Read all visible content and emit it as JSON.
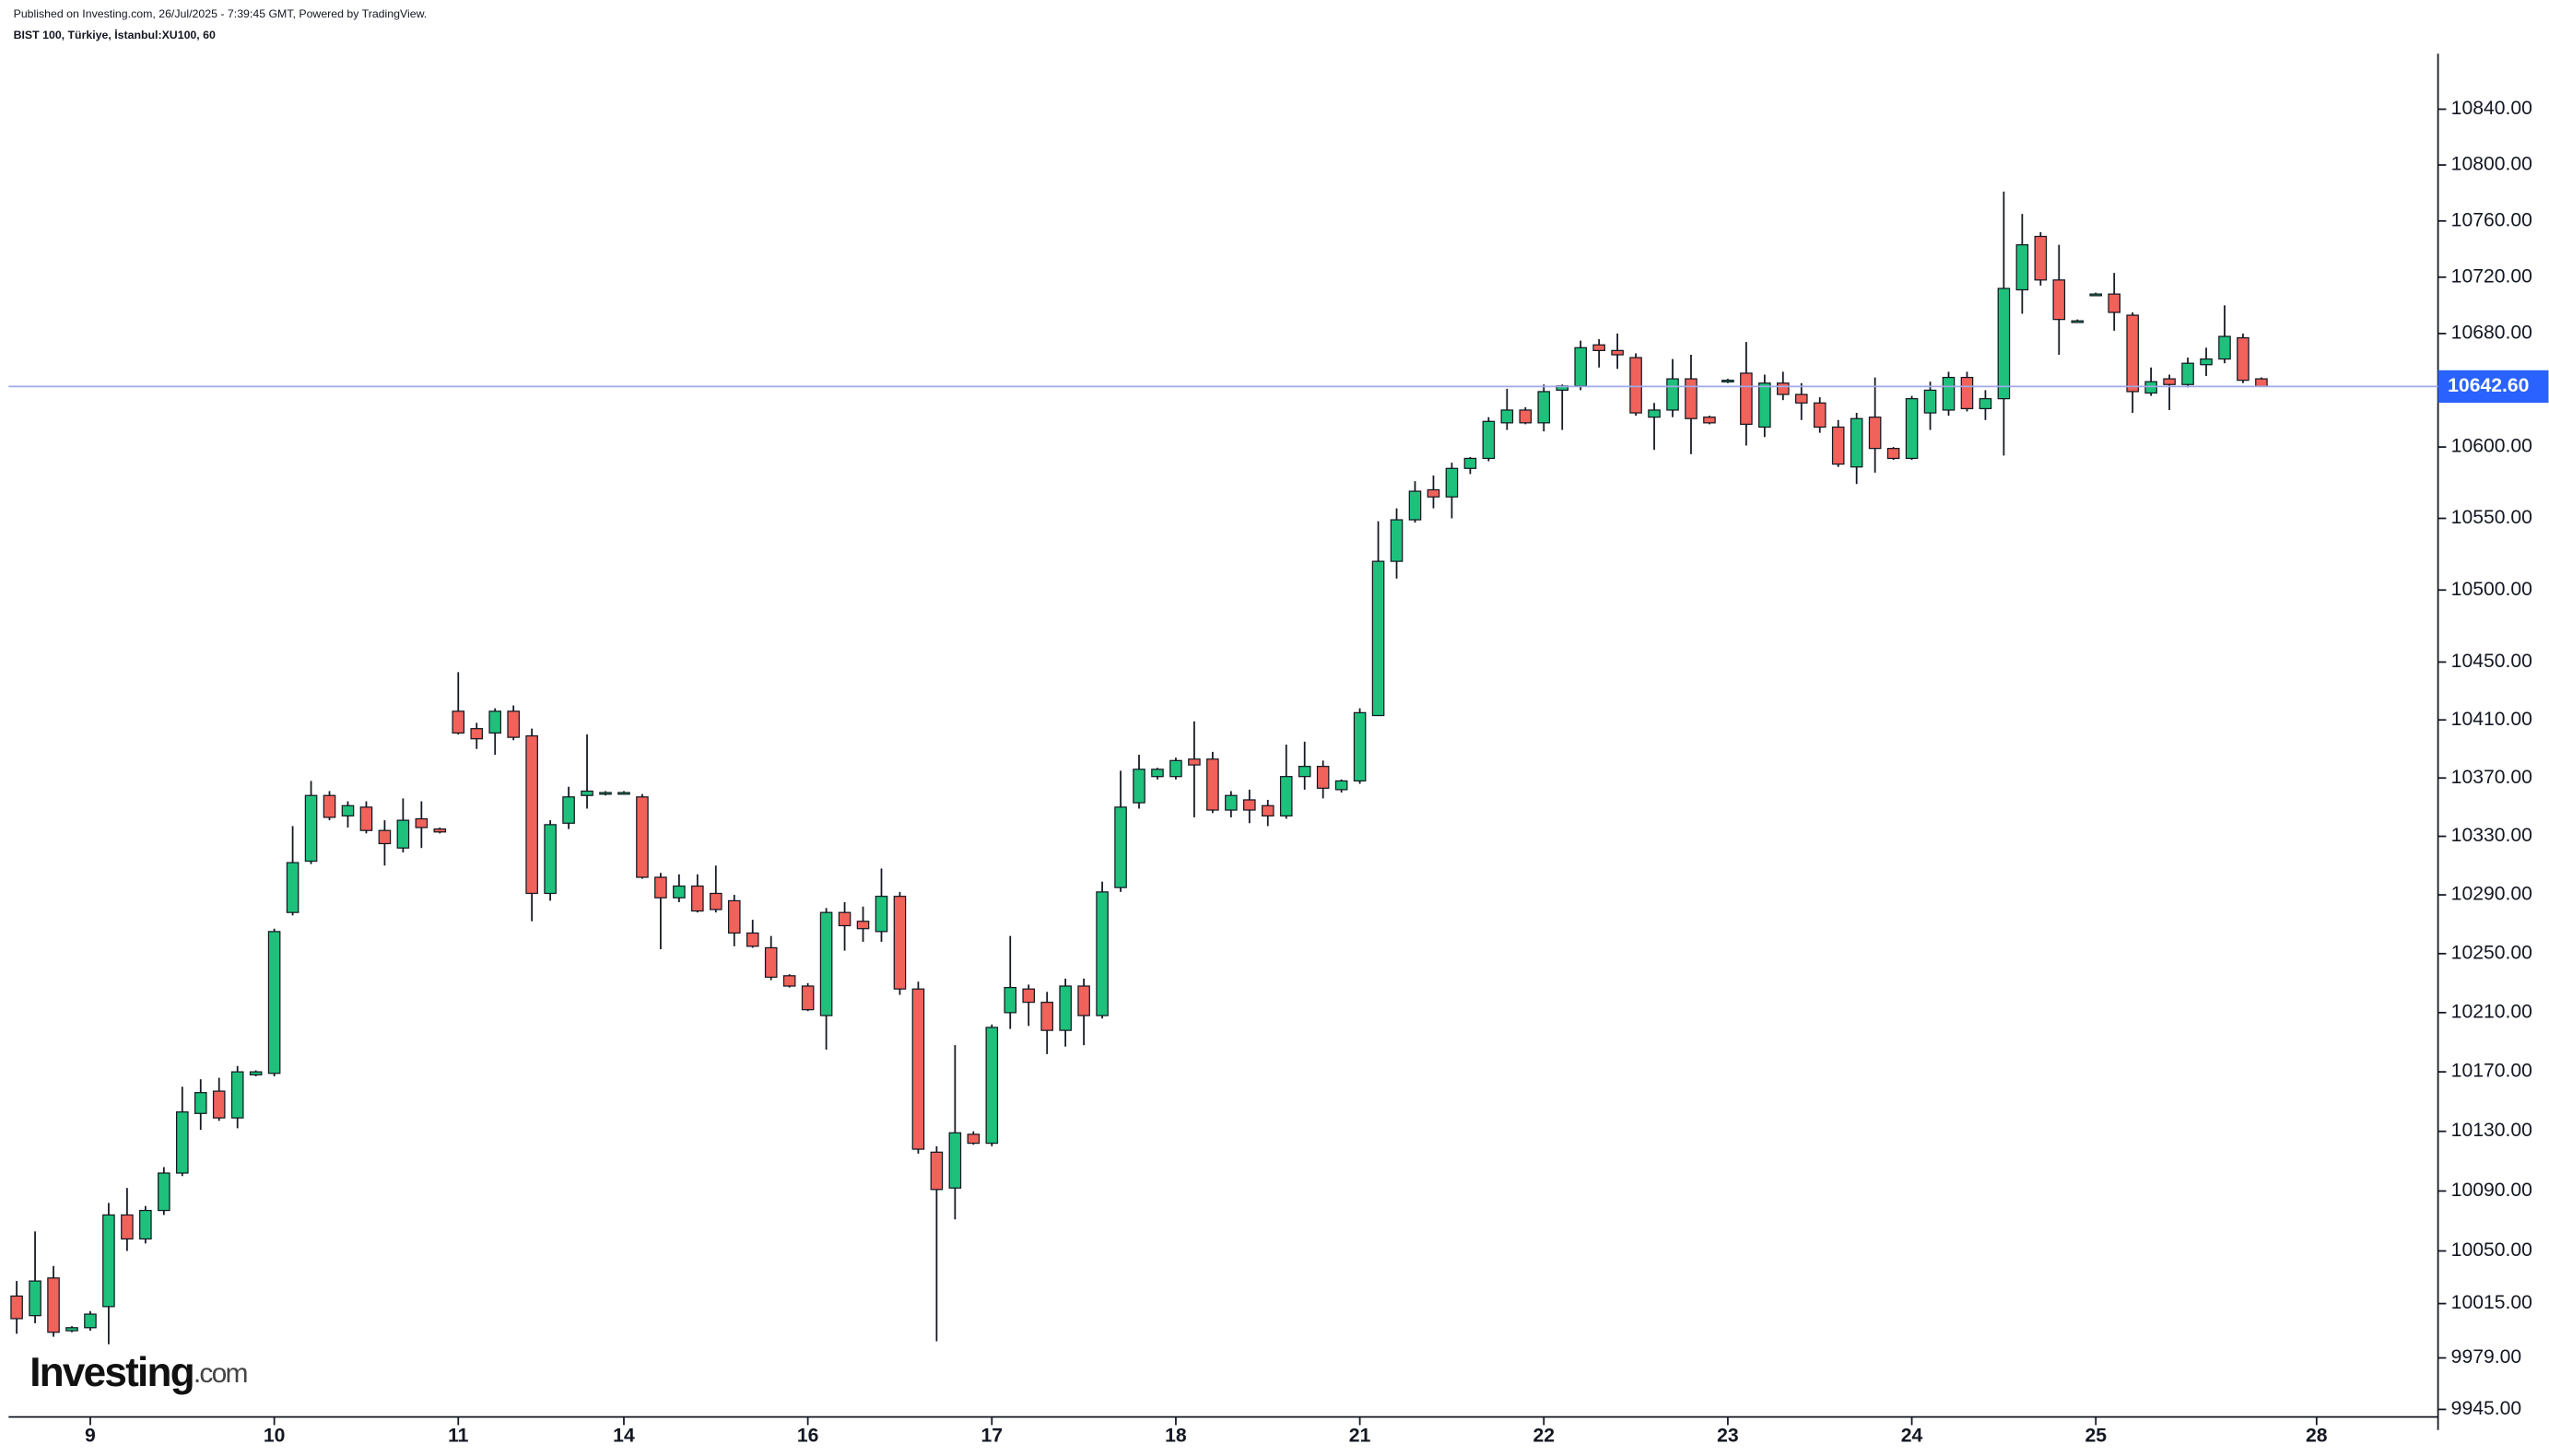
{
  "header": {
    "published": "Published on Investing.com, 26/Jul/2025 - 7:39:45 GMT, Powered by TradingView.",
    "symbol": "BIST 100, Türkiye, İstanbul:XU100, 60"
  },
  "logo": {
    "brand": "Investing",
    "suffix": ".com"
  },
  "chart_data": {
    "type": "candlestick",
    "up_color": "#1ec17b",
    "down_color": "#f0625a",
    "log_scale": true,
    "ylim": [
      9940,
      10880
    ],
    "yticks": [
      {
        "value": 10840,
        "label": "10840.00"
      },
      {
        "value": 10800,
        "label": "10800.00"
      },
      {
        "value": 10760,
        "label": "10760.00"
      },
      {
        "value": 10720,
        "label": "10720.00"
      },
      {
        "value": 10680,
        "label": "10680.00"
      },
      {
        "value": 10600,
        "label": "10600.00"
      },
      {
        "value": 10550,
        "label": "10550.00"
      },
      {
        "value": 10500,
        "label": "10500.00"
      },
      {
        "value": 10450,
        "label": "10450.00"
      },
      {
        "value": 10410,
        "label": "10410.00"
      },
      {
        "value": 10370,
        "label": "10370.00"
      },
      {
        "value": 10330,
        "label": "10330.00"
      },
      {
        "value": 10290,
        "label": "10290.00"
      },
      {
        "value": 10250,
        "label": "10250.00"
      },
      {
        "value": 10210,
        "label": "10210.00"
      },
      {
        "value": 10170,
        "label": "10170.00"
      },
      {
        "value": 10130,
        "label": "10130.00"
      },
      {
        "value": 10090,
        "label": "10090.00"
      },
      {
        "value": 10050,
        "label": "10050.00"
      },
      {
        "value": 10015,
        "label": "10015.00"
      },
      {
        "value": 9979,
        "label": "9979.00"
      },
      {
        "value": 9945,
        "label": "9945.00"
      }
    ],
    "xlim": [
      -0.44,
      131.6
    ],
    "xticks": [
      {
        "value": 4,
        "label": "9"
      },
      {
        "value": 14,
        "label": "10"
      },
      {
        "value": 24,
        "label": "11"
      },
      {
        "value": 33,
        "label": "14"
      },
      {
        "value": 43,
        "label": "16"
      },
      {
        "value": 53,
        "label": "17"
      },
      {
        "value": 63,
        "label": "18"
      },
      {
        "value": 73,
        "label": "21"
      },
      {
        "value": 83,
        "label": "22"
      },
      {
        "value": 93,
        "label": "23"
      },
      {
        "value": 103,
        "label": "24"
      },
      {
        "value": 113,
        "label": "25"
      },
      {
        "value": 125,
        "label": "28"
      }
    ],
    "last_price": {
      "value": 10642.6,
      "label": "10642.60",
      "color": "#2962ff"
    },
    "open": [
      10020,
      10007,
      10032,
      9997,
      9999,
      10013,
      10074,
      10058,
      10077,
      10102,
      10142,
      10157,
      10139,
      10168,
      10169,
      10278,
      10313,
      10358,
      10344,
      10350,
      10334,
      10322,
      10342,
      10335,
      10416,
      10404,
      10401,
      10416,
      10399,
      10291,
      10339,
      10358,
      10359,
      10360,
      10357,
      10302,
      10288,
      10296,
      10291,
      10286,
      10264,
      10254,
      10235,
      10228,
      10208,
      10278,
      10272,
      10265,
      10289,
      10226,
      10116,
      10092,
      10128,
      10122,
      10210,
      10226,
      10217,
      10198,
      10228,
      10208,
      10295,
      10353,
      10371,
      10371,
      10383,
      10383,
      10348,
      10355,
      10351,
      10344,
      10371,
      10378,
      10362,
      10368,
      10413,
      10520,
      10549,
      10570,
      10565,
      10585,
      10592,
      10617,
      10626,
      10617,
      10640,
      10643,
      10672,
      10668,
      10663,
      10621,
      10626,
      10648,
      10621,
      10646,
      10652,
      10614,
      10645,
      10637,
      10631,
      10614,
      10586,
      10621,
      10599,
      10592,
      10624,
      10626,
      10649,
      10627,
      10634,
      10711,
      10749,
      10718,
      10689,
      10708,
      10708,
      10693,
      10638,
      10648,
      10644,
      10658,
      10662,
      10677,
      10648
    ],
    "high": [
      10030,
      10063,
      10040,
      10000,
      10010,
      10082,
      10092,
      10080,
      10106,
      10160,
      10165,
      10166,
      10174,
      10171,
      10267,
      10337,
      10368,
      10361,
      10354,
      10354,
      10341,
      10356,
      10354,
      10336,
      10443,
      10408,
      10418,
      10420,
      10404,
      10341,
      10364,
      10400,
      10361,
      10361,
      10359,
      10305,
      10304,
      10304,
      10310,
      10290,
      10273,
      10262,
      10236,
      10230,
      10281,
      10285,
      10282,
      10308,
      10292,
      10231,
      10120,
      10188,
      10130,
      10202,
      10262,
      10229,
      10224,
      10233,
      10233,
      10299,
      10375,
      10386,
      10377,
      10384,
      10409,
      10388,
      10361,
      10362,
      10355,
      10393,
      10395,
      10382,
      10369,
      10418,
      10548,
      10557,
      10576,
      10580,
      10589,
      10593,
      10621,
      10641,
      10628,
      10644,
      10644,
      10675,
      10676,
      10680,
      10666,
      10631,
      10662,
      10665,
      10622,
      10648,
      10674,
      10651,
      10653,
      10645,
      10635,
      10619,
      10624,
      10649,
      10600,
      10636,
      10646,
      10653,
      10653,
      10640,
      10781,
      10765,
      10752,
      10743,
      10690,
      10709,
      10723,
      10695,
      10656,
      10651,
      10663,
      10670,
      10700,
      10680,
      10649
    ],
    "low": [
      9995,
      10002,
      9993,
      9996,
      9997,
      9988,
      10050,
      10055,
      10074,
      10100,
      10131,
      10137,
      10132,
      10167,
      10167,
      10276,
      10311,
      10341,
      10336,
      10332,
      10310,
      10319,
      10322,
      10332,
      10400,
      10390,
      10386,
      10396,
      10272,
      10286,
      10335,
      10349,
      10358,
      10359,
      10301,
      10253,
      10285,
      10278,
      10278,
      10255,
      10254,
      10232,
      10227,
      10211,
      10185,
      10252,
      10258,
      10258,
      10222,
      10115,
      9990,
      10071,
      10121,
      10120,
      10199,
      10201,
      10182,
      10187,
      10188,
      10206,
      10292,
      10349,
      10369,
      10369,
      10343,
      10346,
      10343,
      10339,
      10337,
      10342,
      10362,
      10356,
      10360,
      10366,
      10413,
      10508,
      10547,
      10557,
      10550,
      10581,
      10590,
      10612,
      10616,
      10611,
      10612,
      10640,
      10656,
      10655,
      10622,
      10598,
      10621,
      10595,
      10616,
      10645,
      10601,
      10607,
      10633,
      10619,
      10610,
      10586,
      10574,
      10582,
      10591,
      10591,
      10612,
      10622,
      10625,
      10619,
      10594,
      10694,
      10714,
      10665,
      10688,
      10707,
      10682,
      10624,
      10636,
      10626,
      10642,
      10650,
      10659,
      10645,
      10642.6
    ],
    "close": [
      10005,
      10030,
      9996,
      9999,
      10008,
      10074,
      10058,
      10077,
      10102,
      10143,
      10156,
      10139,
      10170,
      10170,
      10265,
      10312,
      10358,
      10343,
      10351,
      10334,
      10325,
      10341,
      10336,
      10333,
      10401,
      10397,
      10416,
      10398,
      10291,
      10338,
      10357,
      10361,
      10360,
      10360,
      10302,
      10288,
      10296,
      10279,
      10280,
      10264,
      10255,
      10234,
      10228,
      10212,
      10278,
      10269,
      10267,
      10289,
      10226,
      10118,
      10091,
      10129,
      10122,
      10200,
      10227,
      10217,
      10198,
      10228,
      10208,
      10292,
      10350,
      10376,
      10376,
      10382,
      10379,
      10348,
      10358,
      10348,
      10344,
      10371,
      10378,
      10363,
      10368,
      10415,
      10520,
      10549,
      10569,
      10565,
      10585,
      10592,
      10618,
      10626,
      10617,
      10639,
      10643,
      10670,
      10668,
      10665,
      10624,
      10626,
      10648,
      10620,
      10617,
      10647,
      10616,
      10645,
      10637,
      10631,
      10614,
      10588,
      10620,
      10599,
      10592,
      10634,
      10640,
      10649,
      10627,
      10634,
      10712,
      10743,
      10718,
      10690,
      10689,
      10708,
      10695,
      10639,
      10646,
      10644,
      10659,
      10662,
      10678,
      10647,
      10642.6
    ]
  }
}
